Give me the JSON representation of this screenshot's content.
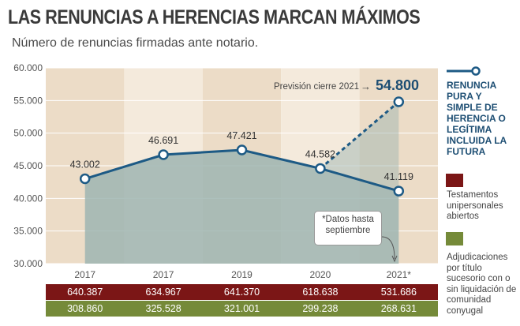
{
  "title": "LAS RENUNCIAS A HERENCIAS MARCAN MÁXIMOS",
  "subtitle": "Número de renuncias firmadas ante notario.",
  "forecast": {
    "label": "Previsión cierre 2021",
    "arrow": "→",
    "value": "54.800"
  },
  "note": {
    "line1": "*Datos hasta",
    "line2": "septiembre"
  },
  "legend": {
    "line_series": "RENUNCIA PURA Y SIMPLE DE HERENCIA O LEGÍTIMA INCLUIDA LA FUTURA",
    "red_series": "Testamentos unipersonales abiertos",
    "green_series": "Adjudicaciones por título sucesorio con o sin liquidación de comunidad conyugal"
  },
  "colors": {
    "line": "#1d5a85",
    "area": "#9fb5b2",
    "band_dark": "#ecdcc7",
    "band_light": "#f4eadc",
    "red": "#7b1616",
    "green": "#758a39"
  },
  "chart_data": {
    "type": "line",
    "categories": [
      "2017",
      "2017",
      "2019",
      "2020",
      "2021*"
    ],
    "series": [
      {
        "name": "RENUNCIA PURA Y SIMPLE DE HERENCIA O LEGÍTIMA INCLUIDA LA FUTURA",
        "values": [
          43002,
          46691,
          47421,
          44582,
          41119
        ],
        "labels": [
          "43.002",
          "46.691",
          "47.421",
          "44.582",
          "41.119"
        ]
      }
    ],
    "forecast": {
      "category": "2021*",
      "value": 54800,
      "label": "54.800"
    },
    "ylim": [
      30000,
      60000
    ],
    "yticks": [
      30000,
      35000,
      40000,
      45000,
      50000,
      55000,
      60000
    ],
    "ytick_labels": [
      "30.000",
      "35.000",
      "40.000",
      "45.000",
      "50.000",
      "55.000",
      "60.000"
    ],
    "grid": true,
    "table": {
      "red_row": [
        "640.387",
        "634.967",
        "641.370",
        "618.638",
        "531.686"
      ],
      "green_row": [
        "308.860",
        "325.528",
        "321.001",
        "299.238",
        "268.631"
      ]
    }
  }
}
